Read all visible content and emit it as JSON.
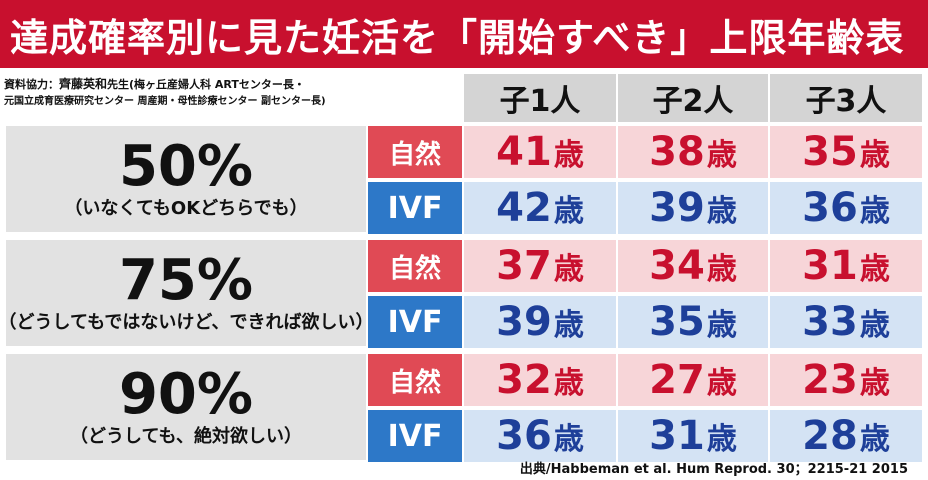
{
  "title": "達成確率別に見た妊活を「開始すべき」上限年齢表",
  "credit": {
    "label": "資料協力：",
    "name": "齊藤英和",
    "honorific": "先生",
    "affil1": "(梅ヶ丘産婦人科 ARTセンター長・",
    "affil2": "元国立成育医療研究センター 周産期・母性診療センター 副センター長)"
  },
  "columns": [
    "子1人",
    "子2人",
    "子3人"
  ],
  "age_unit": "歳",
  "rows": [
    {
      "probability": "50%",
      "note": "（いなくてもOKどちらでも）",
      "natural": {
        "label": "自然",
        "ages": [
          "41",
          "38",
          "35"
        ]
      },
      "ivf": {
        "label": "IVF",
        "ages": [
          "42",
          "39",
          "36"
        ]
      }
    },
    {
      "probability": "75%",
      "note": "（どうしてもではないけど、できれば欲しい）",
      "natural": {
        "label": "自然",
        "ages": [
          "37",
          "34",
          "31"
        ]
      },
      "ivf": {
        "label": "IVF",
        "ages": [
          "39",
          "35",
          "33"
        ]
      }
    },
    {
      "probability": "90%",
      "note": "（どうしても、絶対欲しい）",
      "natural": {
        "label": "自然",
        "ages": [
          "32",
          "27",
          "23"
        ]
      },
      "ivf": {
        "label": "IVF",
        "ages": [
          "36",
          "31",
          "28"
        ]
      }
    }
  ],
  "source": "出典/Habbeman et al. Hum Reprod. 30；2215-21 2015",
  "colors": {
    "title_bg": "#c8102e",
    "natural": "#e04a55",
    "ivf": "#2d78c8"
  }
}
